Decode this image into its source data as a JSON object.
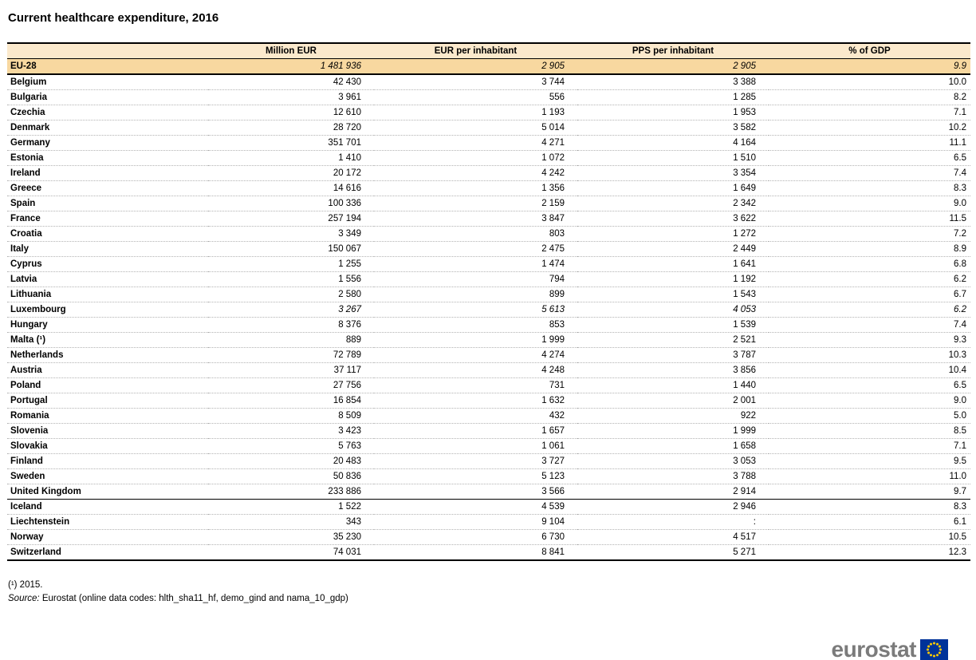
{
  "title": "Current healthcare expenditure, 2016",
  "chart_data": {
    "type": "table",
    "title": "Current healthcare expenditure, 2016",
    "columns": [
      "",
      "Million EUR",
      "EUR per inhabitant",
      "PPS per inhabitant",
      "% of GDP"
    ],
    "rows": [
      {
        "name": "EU-28",
        "values": [
          "1 481 936",
          "2 905",
          "2 905",
          "9.9"
        ],
        "highlight": true,
        "italic": true
      },
      {
        "name": "Belgium",
        "values": [
          "42 430",
          "3 744",
          "3 388",
          "10.0"
        ]
      },
      {
        "name": "Bulgaria",
        "values": [
          "3 961",
          "556",
          "1 285",
          "8.2"
        ]
      },
      {
        "name": "Czechia",
        "values": [
          "12 610",
          "1 193",
          "1 953",
          "7.1"
        ]
      },
      {
        "name": "Denmark",
        "values": [
          "28 720",
          "5 014",
          "3 582",
          "10.2"
        ]
      },
      {
        "name": "Germany",
        "values": [
          "351 701",
          "4 271",
          "4 164",
          "11.1"
        ]
      },
      {
        "name": "Estonia",
        "values": [
          "1 410",
          "1 072",
          "1 510",
          "6.5"
        ]
      },
      {
        "name": "Ireland",
        "values": [
          "20 172",
          "4 242",
          "3 354",
          "7.4"
        ]
      },
      {
        "name": "Greece",
        "values": [
          "14 616",
          "1 356",
          "1 649",
          "8.3"
        ]
      },
      {
        "name": "Spain",
        "values": [
          "100 336",
          "2 159",
          "2 342",
          "9.0"
        ]
      },
      {
        "name": "France",
        "values": [
          "257 194",
          "3 847",
          "3 622",
          "11.5"
        ]
      },
      {
        "name": "Croatia",
        "values": [
          "3 349",
          "803",
          "1 272",
          "7.2"
        ]
      },
      {
        "name": "Italy",
        "values": [
          "150 067",
          "2 475",
          "2 449",
          "8.9"
        ]
      },
      {
        "name": "Cyprus",
        "values": [
          "1 255",
          "1 474",
          "1 641",
          "6.8"
        ]
      },
      {
        "name": "Latvia",
        "values": [
          "1 556",
          "794",
          "1 192",
          "6.2"
        ]
      },
      {
        "name": "Lithuania",
        "values": [
          "2 580",
          "899",
          "1 543",
          "6.7"
        ]
      },
      {
        "name": "Luxembourg",
        "values": [
          "3 267",
          "5 613",
          "4 053",
          "6.2"
        ],
        "italic": true
      },
      {
        "name": "Hungary",
        "values": [
          "8 376",
          "853",
          "1 539",
          "7.4"
        ]
      },
      {
        "name": "Malta (¹)",
        "values": [
          "889",
          "1 999",
          "2 521",
          "9.3"
        ]
      },
      {
        "name": "Netherlands",
        "values": [
          "72 789",
          "4 274",
          "3 787",
          "10.3"
        ]
      },
      {
        "name": "Austria",
        "values": [
          "37 117",
          "4 248",
          "3 856",
          "10.4"
        ]
      },
      {
        "name": "Poland",
        "values": [
          "27 756",
          "731",
          "1 440",
          "6.5"
        ]
      },
      {
        "name": "Portugal",
        "values": [
          "16 854",
          "1 632",
          "2 001",
          "9.0"
        ]
      },
      {
        "name": "Romania",
        "values": [
          "8 509",
          "432",
          "922",
          "5.0"
        ]
      },
      {
        "name": "Slovenia",
        "values": [
          "3 423",
          "1 657",
          "1 999",
          "8.5"
        ]
      },
      {
        "name": "Slovakia",
        "values": [
          "5 763",
          "1 061",
          "1 658",
          "7.1"
        ]
      },
      {
        "name": "Finland",
        "values": [
          "20 483",
          "3 727",
          "3 053",
          "9.5"
        ]
      },
      {
        "name": "Sweden",
        "values": [
          "50 836",
          "5 123",
          "3 788",
          "11.0"
        ]
      },
      {
        "name": "United Kingdom",
        "values": [
          "233 886",
          "3 566",
          "2 914",
          "9.7"
        ],
        "group_end": true
      },
      {
        "name": "Iceland",
        "values": [
          "1 522",
          "4 539",
          "2 946",
          "8.3"
        ]
      },
      {
        "name": "Liechtenstein",
        "values": [
          "343",
          "9 104",
          ":",
          "6.1"
        ]
      },
      {
        "name": "Norway",
        "values": [
          "35 230",
          "6 730",
          "4 517",
          "10.5"
        ]
      },
      {
        "name": "Switzerland",
        "values": [
          "74 031",
          "8 841",
          "5 271",
          "12.3"
        ]
      }
    ]
  },
  "footnote": "(¹) 2015.",
  "source_label": "Source:",
  "source_text": "Eurostat (online data codes: hlth_sha11_hf, demo_gind and nama_10_gdp)",
  "logo_text": "eurostat",
  "colors": {
    "header_bg": "#FBE9CC",
    "eu_row_bg": "#F8D8A0",
    "logo_gray": "#7B7B7B",
    "eu_flag_blue": "#003399",
    "eu_flag_stars": "#FFCC00"
  }
}
